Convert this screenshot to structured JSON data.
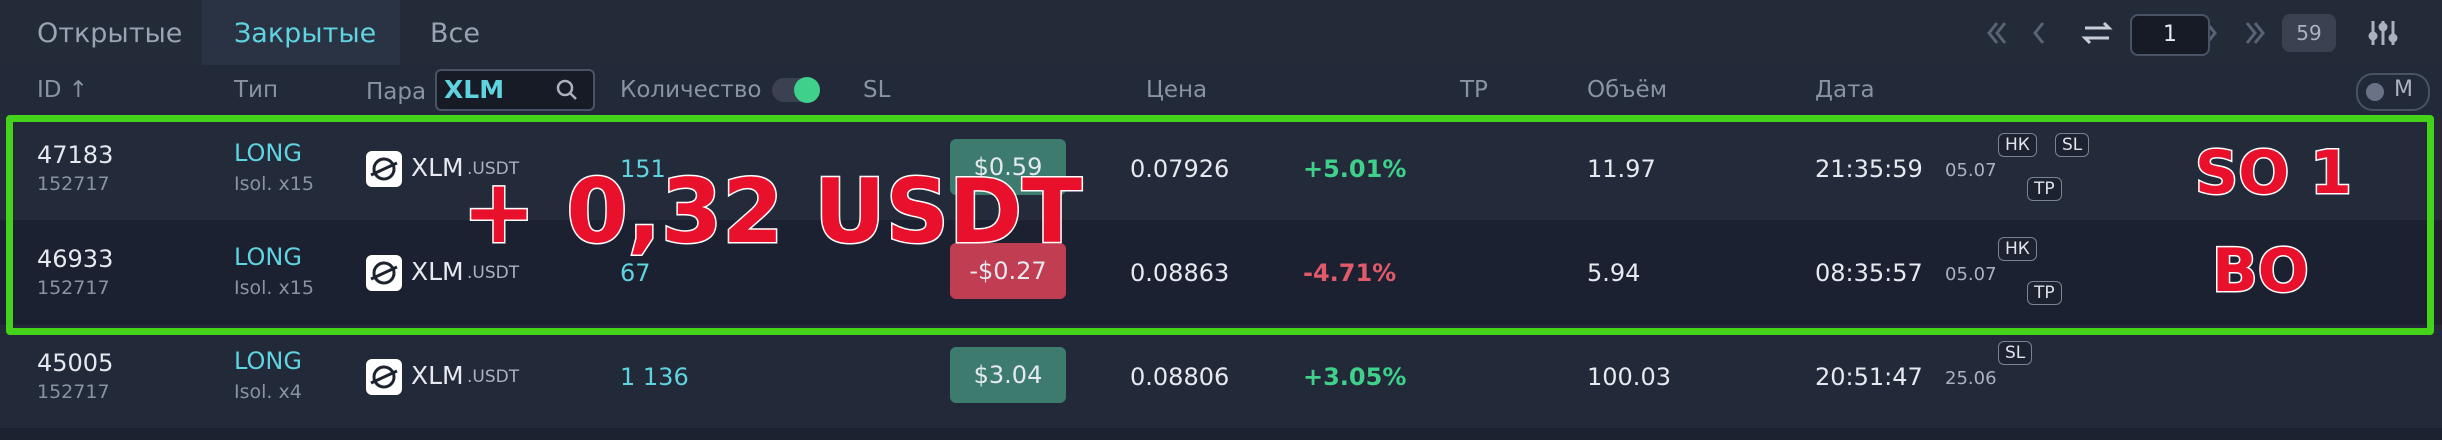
{
  "tabs": [
    "Открытые",
    "Закрытые",
    "Все"
  ],
  "pagination": {
    "page": "1",
    "total": "59"
  },
  "filter": {
    "label": "Пара",
    "value": "XLM"
  },
  "columns": {
    "id": "ID ↑",
    "type": "Тип",
    "qty": "Количество",
    "sl": "SL",
    "price": "Цена",
    "tp": "TP",
    "volume": "Объём",
    "date": "Дата",
    "mode": "M"
  },
  "rows": [
    {
      "id": "47183",
      "sub": "152717",
      "side": "LONG",
      "margin": "Isol. x15",
      "pair": "XLM",
      "quote": ".USDT",
      "qty": "151",
      "pnl": "$0.59",
      "price": "0.07926",
      "change": "+5.01%",
      "volume": "11.97",
      "time": "21:35:59",
      "date": "05.07",
      "tags": [
        "НК",
        "SL"
      ],
      "tags2": [
        "TP"
      ]
    },
    {
      "id": "46933",
      "sub": "152717",
      "side": "LONG",
      "margin": "Isol. x15",
      "pair": "XLM",
      "quote": ".USDT",
      "qty": "67",
      "pnl": "-$0.27",
      "price": "0.08863",
      "change": "-4.71%",
      "volume": "5.94",
      "time": "08:35:57",
      "date": "05.07",
      "tags": [
        "НК"
      ],
      "tags2": [
        "TP"
      ]
    },
    {
      "id": "45005",
      "sub": "152717",
      "side": "LONG",
      "margin": "Isol. x4",
      "pair": "XLM",
      "quote": ".USDT",
      "qty": "1 136",
      "pnl": "$3.04",
      "price": "0.08806",
      "change": "+3.05%",
      "volume": "100.03",
      "time": "20:51:47",
      "date": "25.06",
      "tags": [
        "SL"
      ],
      "tags2": []
    }
  ],
  "annotations": {
    "profit": "+ 0,32 USDT",
    "so": "SO 1",
    "bo": "BO"
  }
}
